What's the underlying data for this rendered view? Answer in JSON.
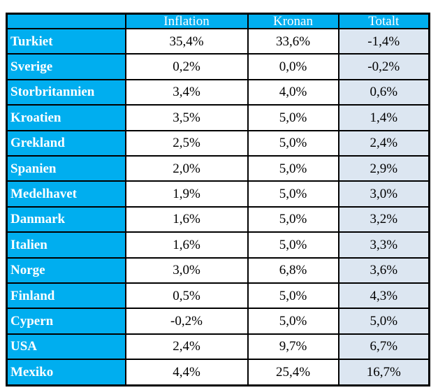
{
  "chart_data": {
    "type": "table",
    "columns": [
      "",
      "Inflation",
      "Kronan",
      "Totalt"
    ],
    "rows": [
      [
        "Turkiet",
        "35,4%",
        "33,6%",
        "-1,4%"
      ],
      [
        "Sverige",
        "0,2%",
        "0,0%",
        "-0,2%"
      ],
      [
        "Storbritannien",
        "3,4%",
        "4,0%",
        "0,6%"
      ],
      [
        "Kroatien",
        "3,5%",
        "5,0%",
        "1,4%"
      ],
      [
        "Grekland",
        "2,5%",
        "5,0%",
        "2,4%"
      ],
      [
        "Spanien",
        "2,0%",
        "5,0%",
        "2,9%"
      ],
      [
        "Medelhavet",
        "1,9%",
        "5,0%",
        "3,0%"
      ],
      [
        "Danmark",
        "1,6%",
        "5,0%",
        "3,2%"
      ],
      [
        "Italien",
        "1,6%",
        "5,0%",
        "3,3%"
      ],
      [
        "Norge",
        "3,0%",
        "6,8%",
        "3,6%"
      ],
      [
        "Finland",
        "0,5%",
        "5,0%",
        "4,3%"
      ],
      [
        "Cypern",
        "-0,2%",
        "5,0%",
        "5,0%"
      ],
      [
        "USA",
        "2,4%",
        "9,7%",
        "6,7%"
      ],
      [
        "Mexiko",
        "4,4%",
        "25,4%",
        "16,7%"
      ]
    ]
  },
  "colors": {
    "accent_cyan": "#00AEEF",
    "totalt_bg": "#DCE6F1",
    "border": "#000000",
    "header_text": "#FFFFFF",
    "data_text": "#000000",
    "cell_bg": "#FFFFFF"
  }
}
